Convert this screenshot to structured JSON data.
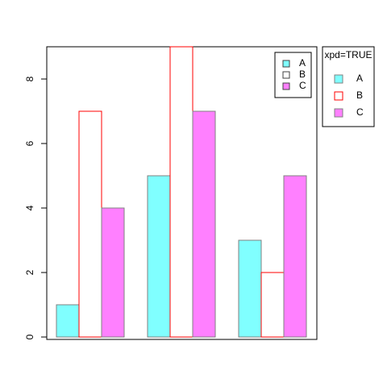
{
  "chart_data": {
    "type": "bar",
    "categories": [
      null,
      null,
      null
    ],
    "series": [
      {
        "name": "A",
        "color": "#80ffff",
        "border_color": "#808080",
        "values": [
          1,
          5,
          3
        ]
      },
      {
        "name": "B",
        "color": "#ffffff",
        "border_color": "#ff0000",
        "values": [
          7,
          9,
          2
        ]
      },
      {
        "name": "C",
        "color": "#ff80ff",
        "border_color": "#808080",
        "values": [
          4,
          7,
          5
        ]
      }
    ],
    "ylim": [
      0,
      9
    ],
    "yticks": [
      0,
      2,
      4,
      6,
      8
    ],
    "grid": false,
    "legend": "top-right",
    "outer_legend_title": "xpd=TRUE"
  }
}
